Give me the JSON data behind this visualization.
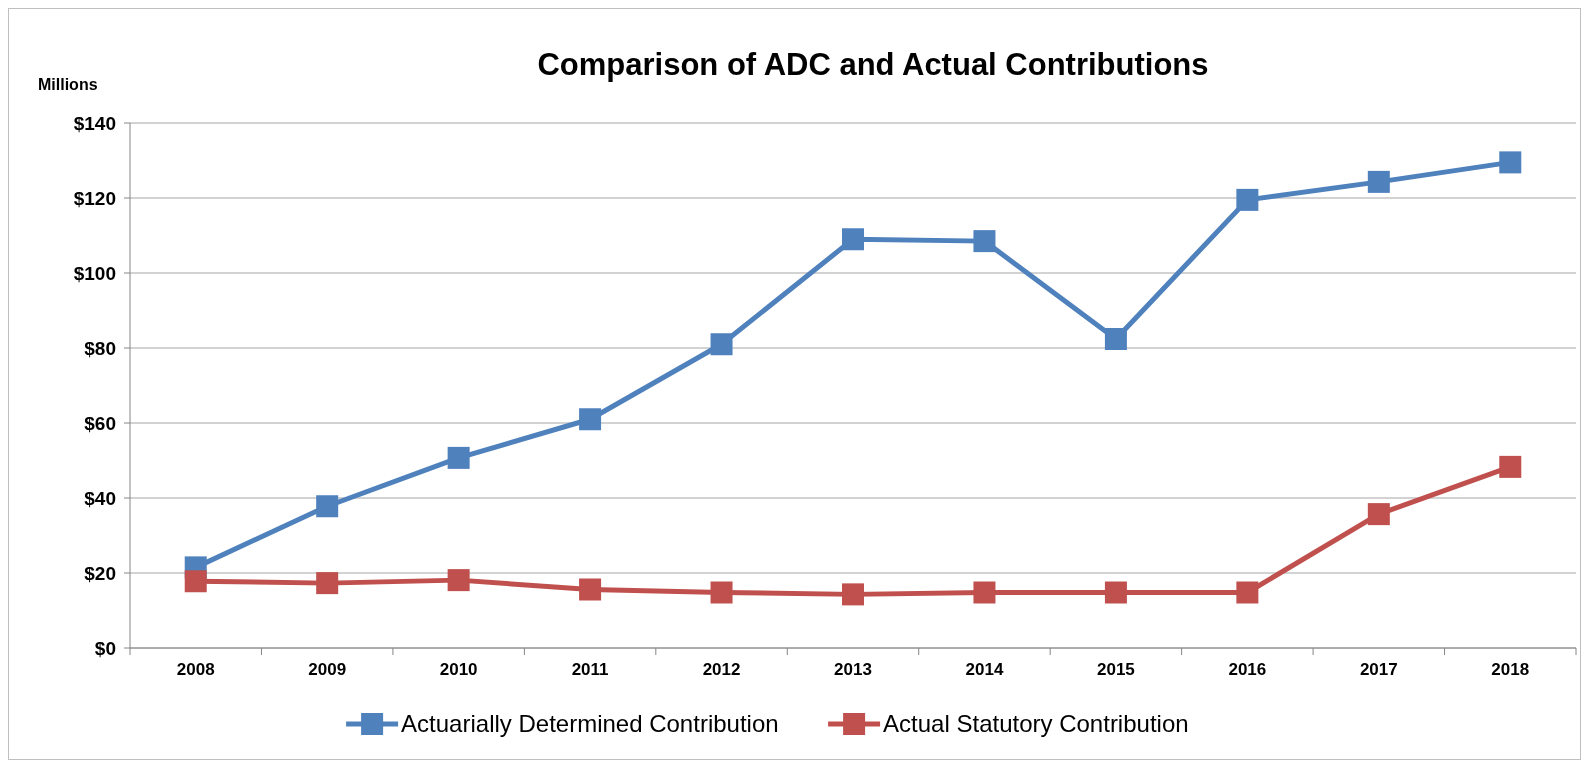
{
  "chart_data": {
    "type": "line",
    "title": "Comparison of ADC and Actual Contributions",
    "ylabel": "Millions",
    "categories": [
      "2008",
      "2009",
      "2010",
      "2011",
      "2012",
      "2013",
      "2014",
      "2015",
      "2016",
      "2017",
      "2018"
    ],
    "series": [
      {
        "name": "Actuarially Determined Contribution",
        "color": "#4f81bd",
        "values": [
          21.5,
          37.8,
          50.7,
          61,
          81,
          109,
          108.5,
          82.4,
          119.5,
          124.3,
          129.5
        ]
      },
      {
        "name": "Actual Statutory Contribution",
        "color": "#c0504d",
        "values": [
          17.8,
          17.3,
          18.1,
          15.6,
          14.8,
          14.3,
          14.8,
          14.8,
          14.8,
          35.7,
          48.3
        ]
      }
    ],
    "ylim": [
      0,
      140
    ],
    "yticks": [
      {
        "value": 0,
        "label": "$0"
      },
      {
        "value": 20,
        "label": "$20"
      },
      {
        "value": 40,
        "label": "$40"
      },
      {
        "value": 60,
        "label": "$60"
      },
      {
        "value": 80,
        "label": "$80"
      },
      {
        "value": 100,
        "label": "$100"
      },
      {
        "value": 120,
        "label": "$120"
      },
      {
        "value": 140,
        "label": "$140"
      }
    ],
    "grid": "y",
    "legend": "bottom",
    "marker": "square",
    "line_style": "solid"
  }
}
